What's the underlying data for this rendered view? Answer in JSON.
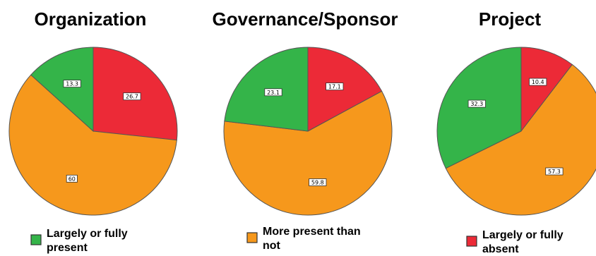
{
  "chart_data": [
    {
      "type": "pie",
      "title": "Organization",
      "slices": [
        {
          "label": "Largely or fully absent",
          "value": 26.7,
          "display": "26.7",
          "color": "#ec2a37"
        },
        {
          "label": "More present than not",
          "value": 60,
          "display": "60",
          "color": "#f6981c"
        },
        {
          "label": "Largely or fully present",
          "value": 13.3,
          "display": "13.3",
          "color": "#34b449"
        }
      ]
    },
    {
      "type": "pie",
      "title": "Governance/Sponsor",
      "slices": [
        {
          "label": "Largely or fully absent",
          "value": 17.1,
          "display": "17.1",
          "color": "#ec2a37"
        },
        {
          "label": "More present than not",
          "value": 59.8,
          "display": "59.8",
          "color": "#f6981c"
        },
        {
          "label": "Largely or fully present",
          "value": 23.1,
          "display": "23.1",
          "color": "#34b449"
        }
      ]
    },
    {
      "type": "pie",
      "title": "Project",
      "slices": [
        {
          "label": "Largely or fully absent",
          "value": 10.4,
          "display": "10.4",
          "color": "#ec2a37"
        },
        {
          "label": "More present than not",
          "value": 57.3,
          "display": "57.3",
          "color": "#f6981c"
        },
        {
          "label": "Largely or fully present",
          "value": 32.3,
          "display": "32.3",
          "color": "#34b449"
        }
      ]
    }
  ],
  "legend": [
    {
      "line1": "Largely or fully",
      "line2": "present",
      "color": "#34b449"
    },
    {
      "line1": "More present than",
      "line2": "not",
      "color": "#f6981c"
    },
    {
      "line1": "Largely or fully",
      "line2": "absent",
      "color": "#ec2a37"
    }
  ]
}
